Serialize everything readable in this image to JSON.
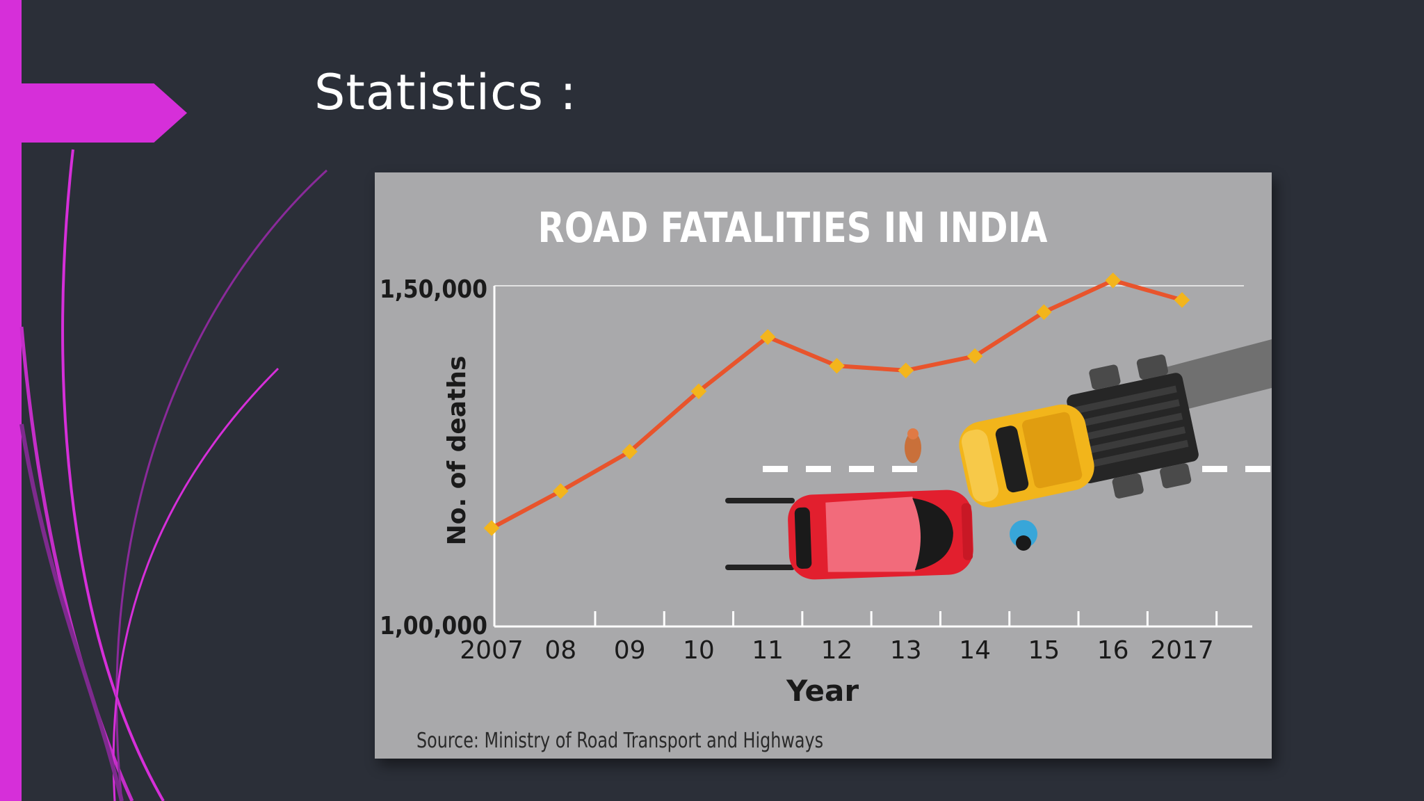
{
  "slide": {
    "title": "Statistics :",
    "colors": {
      "background": "#2b2f38",
      "accent": "#d62fd9"
    }
  },
  "chart_data": {
    "type": "line",
    "title": "ROAD FATALITIES IN INDIA",
    "xlabel": "Year",
    "ylabel": "No. of deaths",
    "categories": [
      "2007",
      "08",
      "09",
      "10",
      "11",
      "12",
      "13",
      "14",
      "15",
      "16",
      "2017"
    ],
    "years": [
      2007,
      2008,
      2009,
      2010,
      2011,
      2012,
      2013,
      2014,
      2015,
      2016,
      2017
    ],
    "values": [
      114444,
      119860,
      125660,
      134513,
      142485,
      138258,
      137572,
      139671,
      146133,
      150785,
      147913
    ],
    "ylim": [
      100000,
      150000
    ],
    "y_ticks": [
      "1,00,000",
      "1,50,000"
    ],
    "source": "Source: Ministry of Road Transport and Highways",
    "line_color": "#e8542c",
    "marker_color": "#f3b51c",
    "grid": false,
    "illustration": [
      "red-car-icon",
      "yellow-truck-icon"
    ]
  }
}
